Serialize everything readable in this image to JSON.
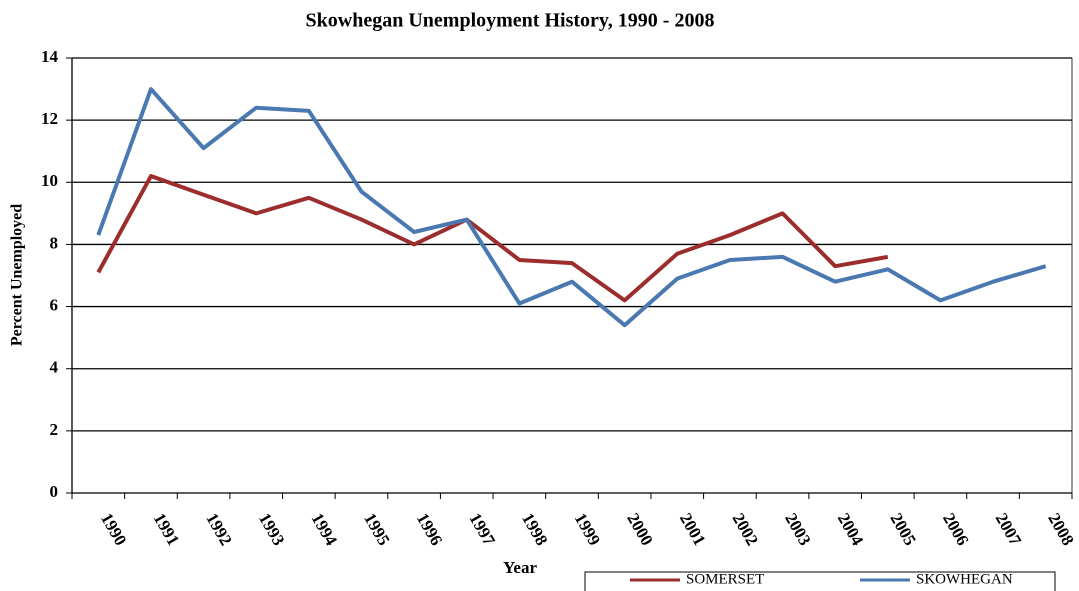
{
  "chart_data": {
    "type": "line",
    "title": "Skowhegan Unemployment History, 1990 - 2008",
    "x_label": "Year",
    "y_label": "Percent Unemployed",
    "categories": [
      "1990",
      "1991",
      "1992",
      "1993",
      "1994",
      "1995",
      "1996",
      "1997",
      "1998",
      "1999",
      "2000",
      "2001",
      "2002",
      "2003",
      "2004",
      "2005",
      "2006",
      "2007",
      "2008"
    ],
    "series": [
      {
        "name": "SOMERSET",
        "color": "#9b2d2d",
        "values": [
          7.1,
          10.2,
          9.6,
          9.0,
          9.5,
          8.8,
          8.0,
          8.8,
          7.5,
          7.4,
          6.2,
          7.7,
          8.3,
          9.0,
          7.3,
          7.6,
          null,
          null,
          null
        ]
      },
      {
        "name": "SKOWHEGAN",
        "color": "#4a78b0",
        "values": [
          8.3,
          13.0,
          11.1,
          12.4,
          12.3,
          9.7,
          8.4,
          8.8,
          6.1,
          6.8,
          5.4,
          6.9,
          7.5,
          7.6,
          6.8,
          7.2,
          6.2,
          6.8,
          7.3
        ]
      }
    ],
    "ylim": [
      0,
      14
    ],
    "yticks": [
      0,
      2,
      4,
      6,
      8,
      10,
      12,
      14
    ],
    "grid": true,
    "legend": "bottom"
  }
}
